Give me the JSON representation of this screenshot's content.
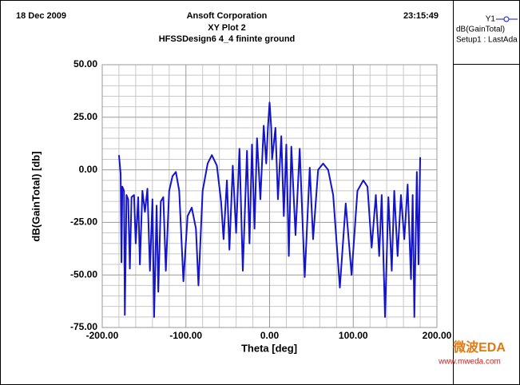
{
  "chart_data": {
    "type": "line",
    "header": {
      "date": "18 Dec 2009",
      "company": "Ansoft Corporation",
      "time": "23:15:49"
    },
    "title": "XY Plot 2",
    "subtitle": "HFSSDesign6 4_4 fininte ground",
    "x_label": "Theta [deg]",
    "y_label": "dB(GainTotal) [db]",
    "legend": {
      "id": "Y1",
      "setup": "Setup1 : LastAda"
    },
    "watermark": {
      "logo": "微波EDA",
      "url": "www.mweda.com"
    },
    "xlim": [
      -200,
      200
    ],
    "ylim": [
      -75,
      50
    ],
    "xticks": [
      {
        "value": -200,
        "label": "-200.00"
      },
      {
        "value": -100,
        "label": "-100.00"
      },
      {
        "value": 0,
        "label": "0.00"
      },
      {
        "value": 100,
        "label": "100.00"
      },
      {
        "value": 200,
        "label": "200.00"
      }
    ],
    "yticks": [
      {
        "value": -75,
        "label": "-75.00"
      },
      {
        "value": -50,
        "label": "-50.00"
      },
      {
        "value": -25,
        "label": "-25.00"
      },
      {
        "value": 0,
        "label": "0.00"
      },
      {
        "value": 25,
        "label": "25.00"
      },
      {
        "value": 50,
        "label": "50.00"
      }
    ],
    "minor_xticks": [
      -180,
      -160,
      -140,
      -120,
      -80,
      -60,
      -40,
      -20,
      20,
      40,
      60,
      80,
      120,
      140,
      160,
      180
    ],
    "minor_yticks": [
      -70,
      -65,
      -60,
      -55,
      -45,
      -40,
      -35,
      -30,
      -20,
      -15,
      -10,
      -5,
      5,
      10,
      15,
      20,
      30,
      35,
      40,
      45
    ],
    "grid": true,
    "x": [
      -180,
      -178,
      -177,
      -176,
      -174,
      -173,
      -171,
      -169,
      -167,
      -165,
      -162,
      -160,
      -157,
      -155,
      -152,
      -149,
      -146,
      -143,
      -140,
      -138,
      -135,
      -133,
      -130,
      -127,
      -124,
      -120,
      -116,
      -112,
      -108,
      -103,
      -98,
      -93,
      -88,
      -85,
      -80,
      -74,
      -69,
      -63,
      -58,
      -55,
      -51,
      -48,
      -44,
      -40,
      -36,
      -32,
      -27,
      -24,
      -21,
      -18,
      -15,
      -11,
      -7,
      -4,
      -2,
      0,
      2,
      3,
      7,
      10,
      14,
      17,
      20,
      23,
      26,
      31,
      36,
      42,
      48,
      52,
      58,
      64,
      70,
      76,
      84,
      91,
      98,
      105,
      112,
      117,
      122,
      127,
      131,
      134,
      138,
      142,
      146,
      149,
      153,
      157,
      161,
      165,
      169,
      171,
      173,
      176,
      178,
      180
    ],
    "series": [
      {
        "name": "dB(GainTotal)",
        "color": "#1414c8",
        "values": [
          7,
          -2,
          -44,
          -8,
          -10,
          -69,
          -12,
          -14,
          -47,
          -13,
          -12,
          -35,
          -13,
          -45,
          -10,
          -20,
          -9,
          -48,
          -14,
          -70,
          -17,
          -58,
          -15,
          -13,
          -48,
          -10,
          -3,
          -1,
          -10,
          -53,
          -22,
          -18,
          -28,
          -55,
          -10,
          3,
          7,
          2,
          -15,
          -33,
          -5,
          -38,
          2,
          -30,
          10,
          -48,
          9,
          -35,
          12,
          -28,
          15,
          -14,
          21,
          3,
          20,
          32,
          20,
          5,
          20,
          -14,
          16,
          -22,
          12,
          -41,
          11,
          -31,
          10,
          -51,
          1,
          -33,
          0,
          3,
          0,
          -12,
          -56,
          -16,
          -50,
          -10,
          -5,
          -8,
          -37,
          -12,
          -41,
          -12,
          -70,
          -13,
          -48,
          -10,
          -41,
          -12,
          -33,
          -7,
          -52,
          -12,
          -70,
          -1,
          -45,
          6
        ]
      }
    ]
  }
}
